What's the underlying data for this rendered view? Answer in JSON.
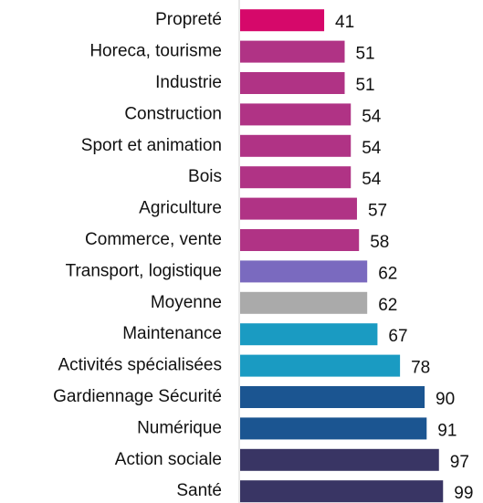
{
  "chart_data": {
    "type": "bar",
    "orientation": "horizontal",
    "categories": [
      "Propreté",
      "Horeca, tourisme",
      "Industrie",
      "Construction",
      "Sport et animation",
      "Bois",
      "Agriculture",
      "Commerce, vente",
      "Transport, logistique",
      "Moyenne",
      "Maintenance",
      "Activités spécialisées",
      "Gardiennage Sécurité",
      "Numérique",
      "Action sociale",
      "Santé"
    ],
    "values": [
      41,
      51,
      51,
      54,
      54,
      54,
      57,
      58,
      62,
      62,
      67,
      78,
      90,
      91,
      97,
      99
    ],
    "colors": [
      "#d6086a",
      "#b03385",
      "#b03385",
      "#b03385",
      "#b03385",
      "#b03385",
      "#b03385",
      "#b03385",
      "#7a6abf",
      "#aaaaaa",
      "#1a9bc2",
      "#1a9bc2",
      "#1b5591",
      "#1b5591",
      "#393564",
      "#393564"
    ],
    "xlim": [
      0,
      100
    ]
  }
}
